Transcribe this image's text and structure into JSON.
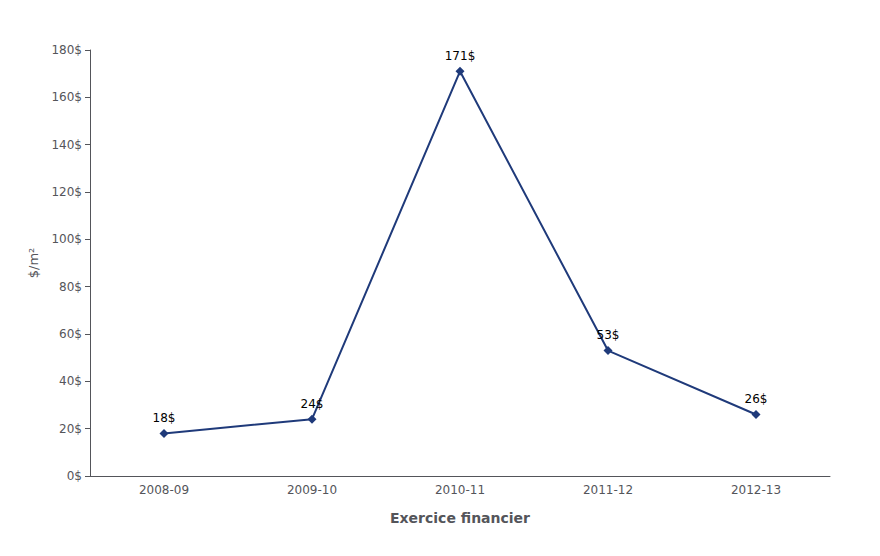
{
  "chart_data": {
    "type": "line",
    "categories": [
      "2008-09",
      "2009-10",
      "2010-11",
      "2011-12",
      "2012-13"
    ],
    "values": [
      18,
      24,
      171,
      53,
      26
    ],
    "value_labels": [
      "18$",
      "24$",
      "171$",
      "53$",
      "26$"
    ],
    "data_labels": true,
    "color": "#1F3A7A",
    "marker": "diamond",
    "xlabel": "Exercice financier",
    "ylabel": "$/m²",
    "ylim": [
      0,
      180
    ],
    "yticks": [
      {
        "value": 0,
        "label": "0$"
      },
      {
        "value": 20,
        "label": "20$"
      },
      {
        "value": 40,
        "label": "40$"
      },
      {
        "value": 60,
        "label": "60$"
      },
      {
        "value": 80,
        "label": "80$"
      },
      {
        "value": 100,
        "label": "100$"
      },
      {
        "value": 120,
        "label": "120$"
      },
      {
        "value": 140,
        "label": "140$"
      },
      {
        "value": 160,
        "label": "160$"
      },
      {
        "value": 180,
        "label": "180$"
      }
    ],
    "grid": false
  }
}
